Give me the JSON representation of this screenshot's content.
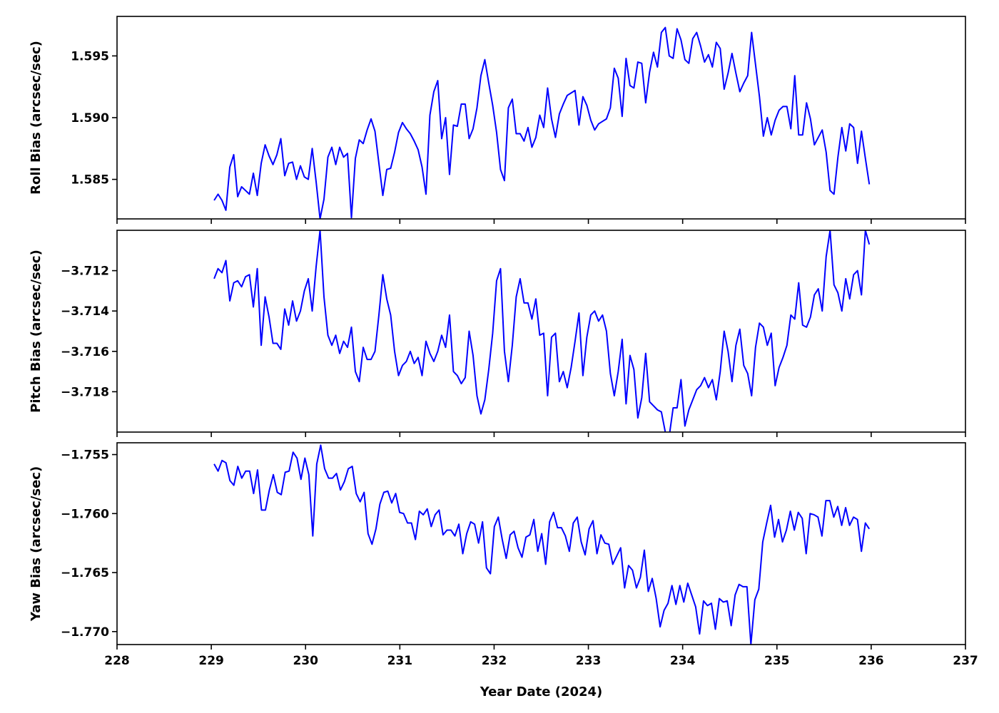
{
  "chart_data": [
    {
      "type": "line",
      "ylabel": "Roll Bias (arcsec/sec)",
      "xlim": [
        228,
        237
      ],
      "ylim": [
        1.5818,
        1.5982
      ],
      "yticks": [
        "1.585",
        "1.590",
        "1.595"
      ],
      "ytick_values": [
        1.585,
        1.59,
        1.595
      ],
      "series": [
        {
          "color": "#0000ff",
          "values": [
            1.5833,
            1.5838,
            1.5833,
            1.5825,
            1.586,
            1.587,
            1.5836,
            1.5844,
            1.5841,
            1.5838,
            1.5855,
            1.5837,
            1.5863,
            1.5878,
            1.5869,
            1.5862,
            1.587,
            1.5883,
            1.5853,
            1.5863,
            1.5864,
            1.585,
            1.5861,
            1.5852,
            1.585,
            1.5875,
            1.5848,
            1.5818,
            1.5834,
            1.5868,
            1.5876,
            1.5862,
            1.5876,
            1.5868,
            1.5871,
            1.5819,
            1.5867,
            1.5882,
            1.5879,
            1.589,
            1.5899,
            1.5889,
            1.5863,
            1.5837,
            1.5858,
            1.5859,
            1.5872,
            1.5888,
            1.5896,
            1.5891,
            1.5887,
            1.5881,
            1.5874,
            1.586,
            1.5838,
            1.5902,
            1.5921,
            1.593,
            1.5883,
            1.59,
            1.5854,
            1.5894,
            1.5893,
            1.5911,
            1.5911,
            1.5883,
            1.5891,
            1.5908,
            1.5934,
            1.5947,
            1.5928,
            1.591,
            1.5888,
            1.5858,
            1.5849,
            1.5908,
            1.5915,
            1.5887,
            1.5887,
            1.5881,
            1.5892,
            1.5876,
            1.5884,
            1.5902,
            1.5892,
            1.5924,
            1.5899,
            1.5884,
            1.5903,
            1.5911,
            1.5918,
            1.592,
            1.5922,
            1.5894,
            1.5917,
            1.591,
            1.5898,
            1.589,
            1.5895,
            1.5897,
            1.5899,
            1.5908,
            1.594,
            1.5932,
            1.5901,
            1.5948,
            1.5926,
            1.5924,
            1.5945,
            1.5944,
            1.5912,
            1.5937,
            1.5953,
            1.5941,
            1.5969,
            1.5973,
            1.595,
            1.5948,
            1.5972,
            1.5963,
            1.5947,
            1.5944,
            1.5964,
            1.5969,
            1.5958,
            1.5945,
            1.5951,
            1.5941,
            1.5961,
            1.5956,
            1.5923,
            1.5936,
            1.5952,
            1.5936,
            1.5921,
            1.5928,
            1.5934,
            1.5969,
            1.5943,
            1.5917,
            1.5885,
            1.59,
            1.5886,
            1.5898,
            1.5906,
            1.5909,
            1.5909,
            1.5891,
            1.5934,
            1.5886,
            1.5886,
            1.5912,
            1.5899,
            1.5878,
            1.5884,
            1.589,
            1.5872,
            1.5841,
            1.5838,
            1.5868,
            1.5892,
            1.5873,
            1.5895,
            1.5892,
            1.5863,
            1.5889,
            1.5867,
            1.5846
          ]
        }
      ]
    },
    {
      "type": "line",
      "ylabel": "Pitch Bias (arcsec/sec)",
      "xlim": [
        228,
        237
      ],
      "ylim": [
        -3.72,
        -3.71
      ],
      "yticks": [
        "−3.712",
        "−3.714",
        "−3.716",
        "−3.718"
      ],
      "ytick_values": [
        -3.712,
        -3.714,
        -3.716,
        -3.718
      ],
      "series": [
        {
          "color": "#0000ff",
          "values": [
            -3.7124,
            -3.7119,
            -3.7121,
            -3.7115,
            -3.7135,
            -3.7126,
            -3.7125,
            -3.7128,
            -3.7123,
            -3.7122,
            -3.7138,
            -3.7119,
            -3.7157,
            -3.7133,
            -3.7143,
            -3.7156,
            -3.7156,
            -3.7159,
            -3.7139,
            -3.7147,
            -3.7135,
            -3.7145,
            -3.714,
            -3.713,
            -3.7124,
            -3.714,
            -3.7118,
            -3.71,
            -3.7133,
            -3.7152,
            -3.7157,
            -3.7152,
            -3.7161,
            -3.7155,
            -3.7158,
            -3.7148,
            -3.717,
            -3.7175,
            -3.7158,
            -3.7164,
            -3.7164,
            -3.716,
            -3.7142,
            -3.7122,
            -3.7134,
            -3.7142,
            -3.716,
            -3.7172,
            -3.7167,
            -3.7165,
            -3.716,
            -3.7166,
            -3.7163,
            -3.7172,
            -3.7155,
            -3.7161,
            -3.7165,
            -3.716,
            -3.7152,
            -3.7158,
            -3.7142,
            -3.717,
            -3.7172,
            -3.7176,
            -3.7173,
            -3.715,
            -3.7162,
            -3.7182,
            -3.7191,
            -3.7184,
            -3.7169,
            -3.7151,
            -3.7125,
            -3.7119,
            -3.716,
            -3.7175,
            -3.7157,
            -3.7133,
            -3.7124,
            -3.7136,
            -3.7136,
            -3.7144,
            -3.7134,
            -3.7152,
            -3.7151,
            -3.7182,
            -3.7153,
            -3.7151,
            -3.7175,
            -3.717,
            -3.7178,
            -3.7168,
            -3.7155,
            -3.7141,
            -3.7172,
            -3.7153,
            -3.7142,
            -3.714,
            -3.7145,
            -3.7142,
            -3.715,
            -3.7171,
            -3.7182,
            -3.717,
            -3.7154,
            -3.7186,
            -3.7162,
            -3.7169,
            -3.7193,
            -3.7183,
            -3.7161,
            -3.7185,
            -3.7187,
            -3.7189,
            -3.719,
            -3.72,
            -3.7202,
            -3.7188,
            -3.7188,
            -3.7174,
            -3.7197,
            -3.7189,
            -3.7184,
            -3.7179,
            -3.7177,
            -3.7173,
            -3.7178,
            -3.7174,
            -3.7184,
            -3.717,
            -3.715,
            -3.716,
            -3.7175,
            -3.7157,
            -3.7149,
            -3.7167,
            -3.7171,
            -3.7182,
            -3.7158,
            -3.7146,
            -3.7148,
            -3.7157,
            -3.7151,
            -3.7177,
            -3.7168,
            -3.7163,
            -3.7157,
            -3.7142,
            -3.7144,
            -3.7126,
            -3.7147,
            -3.7148,
            -3.7143,
            -3.7132,
            -3.7129,
            -3.714,
            -3.7113,
            -3.71,
            -3.7127,
            -3.7131,
            -3.714,
            -3.7124,
            -3.7134,
            -3.7122,
            -3.712,
            -3.7132,
            -3.71,
            -3.7107
          ]
        }
      ]
    },
    {
      "type": "line",
      "xlabel": "Year Date (2024)",
      "ylabel": "Yaw Bias (arcsec/sec)",
      "xlim": [
        228,
        237
      ],
      "ylim": [
        -1.7711,
        -1.754
      ],
      "xticks": [
        "228",
        "229",
        "230",
        "231",
        "232",
        "233",
        "234",
        "235",
        "236",
        "237"
      ],
      "xtick_values": [
        228,
        229,
        230,
        231,
        232,
        233,
        234,
        235,
        236,
        237
      ],
      "yticks": [
        "−1.755",
        "−1.760",
        "−1.765",
        "−1.770"
      ],
      "ytick_values": [
        -1.755,
        -1.76,
        -1.765,
        -1.77
      ],
      "series": [
        {
          "color": "#0000ff",
          "values": [
            -1.7558,
            -1.7564,
            -1.7555,
            -1.7557,
            -1.7572,
            -1.7576,
            -1.756,
            -1.757,
            -1.7564,
            -1.7564,
            -1.7583,
            -1.7563,
            -1.7597,
            -1.7597,
            -1.758,
            -1.7567,
            -1.7582,
            -1.7584,
            -1.7565,
            -1.7564,
            -1.7548,
            -1.7553,
            -1.7571,
            -1.7553,
            -1.7567,
            -1.7619,
            -1.7558,
            -1.7542,
            -1.7562,
            -1.757,
            -1.757,
            -1.7566,
            -1.758,
            -1.7573,
            -1.7562,
            -1.756,
            -1.7583,
            -1.759,
            -1.7582,
            -1.7617,
            -1.7626,
            -1.7613,
            -1.7592,
            -1.7582,
            -1.7581,
            -1.7591,
            -1.7583,
            -1.7599,
            -1.76,
            -1.7608,
            -1.7608,
            -1.7622,
            -1.7598,
            -1.7601,
            -1.7596,
            -1.7611,
            -1.7601,
            -1.7597,
            -1.7618,
            -1.7614,
            -1.7614,
            -1.7619,
            -1.7609,
            -1.7634,
            -1.7617,
            -1.7607,
            -1.7609,
            -1.7625,
            -1.7607,
            -1.7646,
            -1.7651,
            -1.7611,
            -1.7603,
            -1.7622,
            -1.7638,
            -1.7618,
            -1.7615,
            -1.7629,
            -1.7637,
            -1.762,
            -1.7618,
            -1.7605,
            -1.7632,
            -1.7617,
            -1.7643,
            -1.7607,
            -1.7599,
            -1.7612,
            -1.7612,
            -1.7619,
            -1.7632,
            -1.7608,
            -1.7603,
            -1.7624,
            -1.7635,
            -1.7613,
            -1.7606,
            -1.7634,
            -1.7618,
            -1.7625,
            -1.7626,
            -1.7643,
            -1.7636,
            -1.7629,
            -1.7663,
            -1.7644,
            -1.7648,
            -1.7663,
            -1.7654,
            -1.7631,
            -1.7666,
            -1.7655,
            -1.7672,
            -1.7696,
            -1.7682,
            -1.7676,
            -1.7661,
            -1.7677,
            -1.7661,
            -1.7675,
            -1.7659,
            -1.7669,
            -1.7679,
            -1.7702,
            -1.7674,
            -1.7678,
            -1.7676,
            -1.7698,
            -1.7672,
            -1.7675,
            -1.7674,
            -1.7695,
            -1.7669,
            -1.766,
            -1.7662,
            -1.7662,
            -1.7711,
            -1.7673,
            -1.7664,
            -1.7624,
            -1.7608,
            -1.7593,
            -1.762,
            -1.7605,
            -1.7624,
            -1.7614,
            -1.7598,
            -1.7614,
            -1.7599,
            -1.7604,
            -1.7634,
            -1.76,
            -1.7601,
            -1.7603,
            -1.7619,
            -1.7589,
            -1.7589,
            -1.7603,
            -1.7594,
            -1.761,
            -1.7595,
            -1.761,
            -1.7603,
            -1.7605,
            -1.7632,
            -1.7608,
            -1.7613
          ]
        }
      ]
    }
  ]
}
